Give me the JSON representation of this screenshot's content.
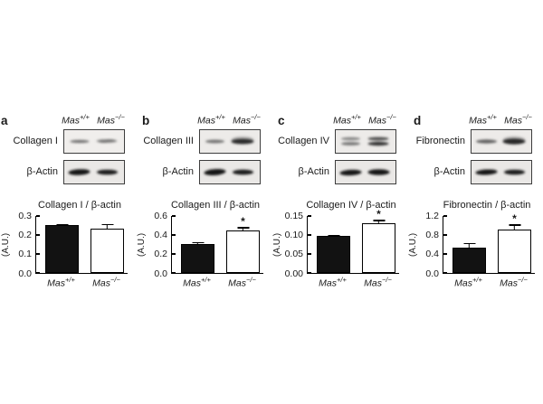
{
  "sig_label": "*",
  "colors": {
    "bar_filled": "#121212",
    "bar_open": "#ffffff",
    "axis": "#000000",
    "background": "#ffffff"
  },
  "panels": [
    {
      "letter": "a",
      "protein_label": "Collagen I",
      "control_label": "β-Actin",
      "lanes": [
        {
          "base": "Mas",
          "sup": "+/+"
        },
        {
          "base": "Mas",
          "sup": "−/−"
        }
      ]
    },
    {
      "letter": "b",
      "protein_label": "Collagen III",
      "control_label": "β-Actin",
      "lanes": [
        {
          "base": "Mas",
          "sup": "+/+"
        },
        {
          "base": "Mas",
          "sup": "−/−"
        }
      ]
    },
    {
      "letter": "c",
      "protein_label": "Collagen IV",
      "control_label": "β-Actin",
      "lanes": [
        {
          "base": "Mas",
          "sup": "+/+"
        },
        {
          "base": "Mas",
          "sup": "−/−"
        }
      ]
    },
    {
      "letter": "d",
      "protein_label": "Fibronectin",
      "control_label": "β-Actin",
      "lanes": [
        {
          "base": "Mas",
          "sup": "+/+"
        },
        {
          "base": "Mas",
          "sup": "−/−"
        }
      ]
    }
  ],
  "chart_data": [
    {
      "type": "bar",
      "title": "Collagen I / β-actin",
      "ylabel": "(A.U.)",
      "ylim": [
        0,
        0.3
      ],
      "ytick_labels": [
        "0.0",
        "0.1",
        "0.2",
        "0.3"
      ],
      "categories": [
        "Mas+/+",
        "Mas−/−"
      ],
      "values": [
        0.25,
        0.232
      ],
      "errors": [
        0.006,
        0.024
      ],
      "significant": [
        false,
        false
      ],
      "bar_fills": [
        "#121212",
        "#ffffff"
      ]
    },
    {
      "type": "bar",
      "title": "Collagen III / β-actin",
      "ylabel": "(A.U.)",
      "ylim": [
        0,
        0.6
      ],
      "ytick_labels": [
        "0.0",
        "0.2",
        "0.4",
        "0.6"
      ],
      "categories": [
        "Mas+/+",
        "Mas−/−"
      ],
      "values": [
        0.3,
        0.44
      ],
      "errors": [
        0.02,
        0.04
      ],
      "significant": [
        false,
        true
      ],
      "bar_fills": [
        "#121212",
        "#ffffff"
      ]
    },
    {
      "type": "bar",
      "title": "Collagen IV / β-actin",
      "ylabel": "(A.U.)",
      "ylim": [
        0,
        0.15
      ],
      "ytick_labels": [
        "0.00",
        "0.05",
        "0.10",
        "0.15"
      ],
      "categories": [
        "Mas+/+",
        "Mas−/−"
      ],
      "values": [
        0.096,
        0.129
      ],
      "errors": [
        0.003,
        0.01
      ],
      "significant": [
        false,
        true
      ],
      "bar_fills": [
        "#121212",
        "#ffffff"
      ]
    },
    {
      "type": "bar",
      "title": "Fibronectin / β-actin",
      "ylabel": "(A.U.)",
      "ylim": [
        0,
        1.2
      ],
      "ytick_labels": [
        "0.0",
        "0.4",
        "0.8",
        "1.2"
      ],
      "categories": [
        "Mas+/+",
        "Mas−/−"
      ],
      "values": [
        0.53,
        0.91
      ],
      "errors": [
        0.09,
        0.1
      ],
      "significant": [
        false,
        true
      ],
      "bar_fills": [
        "#121212",
        "#ffffff"
      ]
    }
  ]
}
